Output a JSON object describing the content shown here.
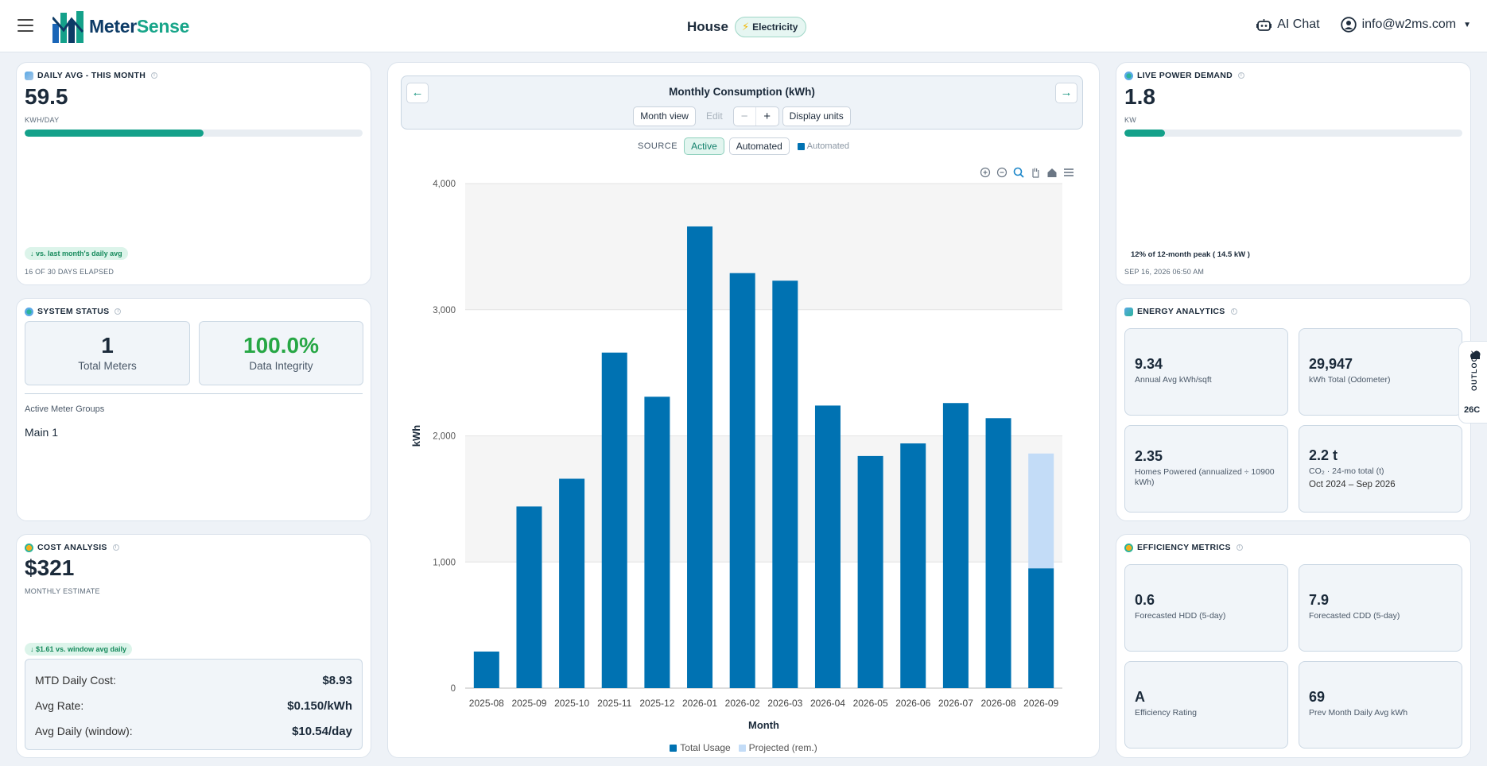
{
  "header": {
    "logo_part1": "Meter",
    "logo_part2": "Sense",
    "site": "House",
    "utility": "Electricity",
    "ai_chat": "AI Chat",
    "account": "info@w2ms.com"
  },
  "daily_avg": {
    "title": "DAILY AVG - THIS MONTH",
    "value": "59.5",
    "unit": "KWH/DAY",
    "progress_fraction": 0.53,
    "trend": "↓ vs. last month's daily avg",
    "days": "16 OF 30 DAYS ELAPSED"
  },
  "system_status": {
    "title": "SYSTEM STATUS",
    "meters_value": "1",
    "meters_label": "Total Meters",
    "integrity_value": "100.0%",
    "integrity_label": "Data Integrity",
    "groups_label": "Active Meter Groups",
    "group_name": "Main 1"
  },
  "cost": {
    "title": "COST ANALYSIS",
    "value": "$321",
    "unit": "MONTHLY ESTIMATE",
    "trend": "↓ $1.61 vs. window avg daily",
    "rows": [
      {
        "label": "MTD Daily Cost:",
        "value": "$8.93"
      },
      {
        "label": "Avg Rate:",
        "value": "$0.150/kWh"
      },
      {
        "label": "Avg Daily (window):",
        "value": "$10.54/day"
      }
    ]
  },
  "chart_panel": {
    "prev": "←",
    "next": "→",
    "title": "Monthly Consumption (kWh)",
    "month_view": "Month view",
    "edit": "Edit",
    "minus": "−",
    "plus": "+",
    "display_units": "Display units",
    "source_label": "SOURCE",
    "source_active": "Active",
    "source_automated": "Automated",
    "automated_legend": "Automated"
  },
  "chart_data": {
    "type": "bar",
    "title": "Monthly Consumption (kWh)",
    "xlabel": "Month",
    "ylabel": "kWh",
    "ylim": [
      0,
      4000
    ],
    "yticks": [
      "0",
      "1,000",
      "2,000",
      "3,000",
      "4,000"
    ],
    "categories": [
      "2025-08",
      "2025-09",
      "2025-10",
      "2025-11",
      "2025-12",
      "2026-01",
      "2026-02",
      "2026-03",
      "2026-04",
      "2026-05",
      "2026-06",
      "2026-07",
      "2026-08",
      "2026-09"
    ],
    "series": [
      {
        "name": "Total Usage",
        "color": "#0072b2",
        "values": [
          290,
          1440,
          1660,
          2660,
          2310,
          3660,
          3290,
          3230,
          2240,
          1840,
          1940,
          2260,
          2140,
          950
        ]
      },
      {
        "name": "Projected (rem.)",
        "color": "#c3dcf7",
        "values": [
          0,
          0,
          0,
          0,
          0,
          0,
          0,
          0,
          0,
          0,
          0,
          0,
          0,
          910
        ]
      }
    ],
    "legend_position": "bottom",
    "grid": true
  },
  "live_power": {
    "title": "LIVE POWER DEMAND",
    "value": "1.8",
    "unit": "KW",
    "progress_fraction": 0.12,
    "peak_text": "12% of 12-month peak ( 14.5 kW )",
    "timestamp": "SEP 16, 2026 06:50 AM"
  },
  "energy": {
    "title": "ENERGY ANALYTICS",
    "tiles": [
      {
        "value": "9.34",
        "label": "Annual Avg kWh/sqft"
      },
      {
        "value": "29,947",
        "label": "kWh Total (Odometer)"
      },
      {
        "value": "2.35",
        "label": "Homes Powered (annualized ÷ 10900 kWh)"
      },
      {
        "value": "2.2 t",
        "label": "CO₂ · 24-mo total (t)",
        "sub": "Oct 2024 – Sep 2026"
      }
    ]
  },
  "efficiency": {
    "title": "EFFICIENCY METRICS",
    "tiles": [
      {
        "value": "0.6",
        "label": "Forecasted HDD (5-day)"
      },
      {
        "value": "7.9",
        "label": "Forecasted CDD (5-day)"
      },
      {
        "value": "A",
        "label": "Efficiency Rating"
      },
      {
        "value": "69",
        "label": "Prev Month Daily Avg kWh"
      }
    ]
  },
  "outlook": {
    "label": "OUTLOOK",
    "temp": "26C"
  }
}
